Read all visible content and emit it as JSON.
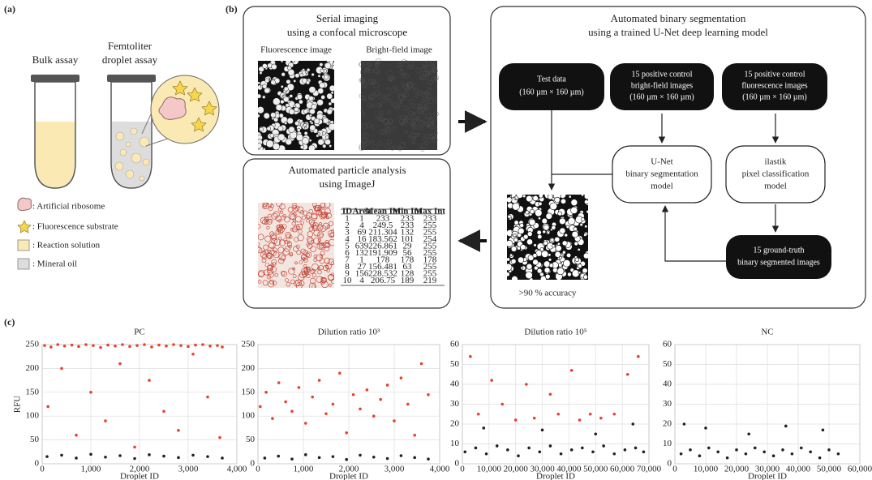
{
  "panel_a": {
    "label": "(a)",
    "bulk": "Bulk assay",
    "droplet": [
      "Femtoliter",
      "droplet assay"
    ],
    "legend": [
      ": Artificial ribosome",
      ": Fluorescence substrate",
      ": Reaction solution",
      ": Mineral oil"
    ]
  },
  "panel_b": {
    "label": "(b)",
    "imaging": {
      "title": [
        "Serial imaging",
        "using a confocal microscope"
      ],
      "fluor": "Fluorescence image",
      "bright": "Bright-field image"
    },
    "analysis": {
      "title": [
        "Automated particle analysis",
        "using ImageJ"
      ],
      "table": {
        "header": [
          "ID",
          "Area",
          "Mean Int",
          "Min Int",
          "Max Int"
        ],
        "rows": [
          [
            1,
            1,
            233,
            233,
            233
          ],
          [
            2,
            4,
            249.5,
            233,
            255
          ],
          [
            3,
            69,
            211.304,
            132,
            255
          ],
          [
            4,
            16,
            183.562,
            101,
            254
          ],
          [
            5,
            639,
            226.861,
            29,
            255
          ],
          [
            6,
            132,
            191.909,
            56,
            255
          ],
          [
            7,
            1,
            178,
            178,
            178
          ],
          [
            8,
            27,
            156.481,
            63,
            255
          ],
          [
            9,
            156,
            228.532,
            128,
            255
          ],
          [
            10,
            4,
            206.75,
            189,
            219
          ]
        ]
      }
    },
    "segmentation": {
      "title": [
        "Automated binary segmentation",
        "using a trained U-Net deep learning model"
      ],
      "test": [
        "Test data",
        "(160 µm × 160 µm)"
      ],
      "bf": [
        "15 positive control",
        "bright-field images",
        "(160 µm × 160 µm)"
      ],
      "fl": [
        "15 positive control",
        "fluorescence images",
        "(160 µm × 160 µm)"
      ],
      "unet": [
        "U-Net",
        "binary segmentation",
        "model"
      ],
      "ilastik": [
        "ilastik",
        "pixel classification",
        "model"
      ],
      "truth": [
        "15 ground-truth",
        "binary segmented images"
      ],
      "accuracy": ">90 % accuracy"
    }
  },
  "panel_c": {
    "label": "(c)"
  },
  "chart_data": [
    {
      "type": "scatter",
      "title": "PC",
      "x_label": "Droplet ID",
      "y_label": "RFU",
      "xlim": [
        0,
        4000
      ],
      "xticks": [
        0,
        {
          "value": 1000,
          "label": "1,000"
        },
        {
          "value": 2000,
          "label": "2,000"
        },
        {
          "value": 3000,
          "label": "3,000"
        },
        {
          "value": 4000,
          "label": "4,000"
        }
      ],
      "ylim": [
        0,
        250
      ],
      "yticks": [
        0,
        50,
        100,
        150,
        200,
        250
      ],
      "grid": true,
      "series": [
        {
          "color": "#e8402a",
          "x": [
            50,
            180,
            320,
            460,
            610,
            750,
            900,
            1050,
            1200,
            1350,
            1500,
            1650,
            1800,
            1950,
            2100,
            2250,
            2400,
            2550,
            2700,
            2850,
            3000,
            3150,
            3300,
            3450,
            3600,
            3700,
            120,
            400,
            700,
            1000,
            1300,
            1600,
            1900,
            2200,
            2500,
            2800,
            3100,
            3400,
            3650
          ],
          "values": [
            248,
            245,
            250,
            247,
            249,
            246,
            250,
            248,
            244,
            249,
            247,
            250,
            246,
            248,
            250,
            245,
            249,
            247,
            250,
            248,
            246,
            249,
            250,
            247,
            248,
            245,
            120,
            200,
            60,
            150,
            90,
            210,
            35,
            175,
            110,
            70,
            230,
            140,
            55
          ]
        },
        {
          "color": "#222222",
          "x": [
            100,
            400,
            700,
            1000,
            1300,
            1600,
            1900,
            2200,
            2500,
            2800,
            3100,
            3400,
            3700
          ],
          "values": [
            15,
            18,
            12,
            20,
            14,
            17,
            11,
            19,
            16,
            13,
            18,
            15,
            12
          ]
        }
      ]
    },
    {
      "type": "scatter",
      "title": "Dilution ratio 10³",
      "x_label": "Droplet ID",
      "xlim": [
        0,
        4000
      ],
      "xticks": [
        0,
        {
          "value": 1000,
          "label": "1,000"
        },
        {
          "value": 2000,
          "label": "2,000"
        },
        {
          "value": 3000,
          "label": "3,000"
        },
        {
          "value": 4000,
          "label": "4,000"
        }
      ],
      "ylim": [
        0,
        250
      ],
      "yticks": [
        0,
        50,
        100,
        150,
        200,
        250
      ],
      "grid": true,
      "series": [
        {
          "color": "#e8402a",
          "x": [
            50,
            180,
            320,
            460,
            610,
            750,
            900,
            1050,
            1200,
            1350,
            1500,
            1650,
            1800,
            1950,
            2100,
            2250,
            2400,
            2550,
            2700,
            2850,
            3000,
            3150,
            3300,
            3450,
            3600,
            3750
          ],
          "values": [
            120,
            150,
            95,
            170,
            130,
            110,
            160,
            85,
            140,
            175,
            105,
            125,
            190,
            65,
            145,
            115,
            155,
            100,
            135,
            165,
            90,
            180,
            125,
            60,
            210,
            145
          ]
        },
        {
          "color": "#222222",
          "x": [
            150,
            450,
            750,
            1050,
            1350,
            1650,
            1950,
            2250,
            2550,
            2850,
            3150,
            3450,
            3750
          ],
          "values": [
            12,
            16,
            10,
            19,
            13,
            15,
            9,
            18,
            14,
            11,
            17,
            13,
            10
          ]
        }
      ]
    },
    {
      "type": "scatter",
      "title": "Dilution ratio 10⁵",
      "x_label": "Droplet ID",
      "xlim": [
        0,
        70000
      ],
      "xticks": [
        0,
        {
          "value": 10000,
          "label": "10,000"
        },
        {
          "value": 20000,
          "label": "20,000"
        },
        {
          "value": 30000,
          "label": "30,000"
        },
        {
          "value": 40000,
          "label": "40,000"
        },
        {
          "value": 50000,
          "label": "50,000"
        },
        {
          "value": 60000,
          "label": "60,000"
        },
        {
          "value": 70000,
          "label": "70,000"
        }
      ],
      "ylim": [
        0,
        60
      ],
      "yticks": [
        0,
        10,
        20,
        30,
        40,
        50,
        60
      ],
      "grid": true,
      "series": [
        {
          "color": "#e8402a",
          "x": [
            3000,
            6000,
            11000,
            15000,
            20000,
            24000,
            27000,
            33000,
            36000,
            41000,
            44000,
            48000,
            52000,
            57000,
            62000,
            66000
          ],
          "values": [
            54,
            25,
            42,
            30,
            22,
            40,
            23,
            35,
            25,
            47,
            22,
            25,
            23,
            25,
            45,
            54
          ]
        },
        {
          "color": "#222222",
          "x": [
            1000,
            5000,
            9000,
            13000,
            17000,
            21000,
            25000,
            29000,
            33000,
            37000,
            41000,
            45000,
            49000,
            53000,
            57000,
            61000,
            65000,
            68000,
            8000,
            30000,
            50000,
            64000
          ],
          "values": [
            6,
            8,
            5,
            9,
            7,
            4,
            8,
            6,
            9,
            5,
            7,
            8,
            6,
            9,
            5,
            7,
            8,
            6,
            18,
            17,
            15,
            20
          ]
        }
      ]
    },
    {
      "type": "scatter",
      "title": "NC",
      "x_label": "Droplet ID",
      "xlim": [
        0,
        60000
      ],
      "xticks": [
        0,
        {
          "value": 10000,
          "label": "10,000"
        },
        {
          "value": 20000,
          "label": "20,000"
        },
        {
          "value": 30000,
          "label": "30,000"
        },
        {
          "value": 40000,
          "label": "40,000"
        },
        {
          "value": 50000,
          "label": "50,000"
        },
        {
          "value": 60000,
          "label": "60,000"
        }
      ],
      "ylim": [
        0,
        60
      ],
      "yticks": [
        0,
        10,
        20,
        30,
        40,
        50,
        60
      ],
      "grid": true,
      "series": [
        {
          "color": "#222222",
          "x": [
            2000,
            5000,
            8000,
            11000,
            14000,
            17000,
            20000,
            23000,
            26000,
            29000,
            32000,
            35000,
            38000,
            41000,
            44000,
            47000,
            50000,
            53000,
            3000,
            10000,
            24000,
            36000,
            48000
          ],
          "values": [
            5,
            7,
            4,
            8,
            6,
            3,
            7,
            5,
            8,
            6,
            4,
            7,
            5,
            8,
            6,
            3,
            7,
            5,
            20,
            18,
            15,
            19,
            17
          ]
        }
      ]
    }
  ]
}
